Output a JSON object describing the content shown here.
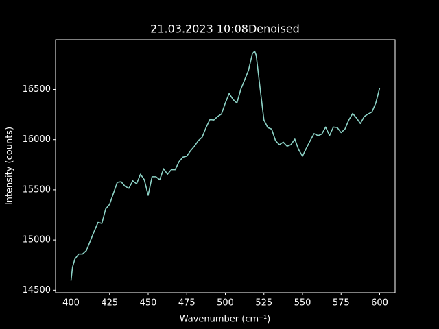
{
  "chart_data": {
    "type": "line",
    "title": "21.03.2023 10:08Denoised",
    "xlabel": "Wavenumber (cm⁻¹)",
    "ylabel": "Intensity (counts)",
    "color": "#8dd3c7",
    "xlim": [
      390,
      610
    ],
    "ylim": [
      14475,
      16995
    ],
    "xticks": [
      400,
      425,
      450,
      475,
      500,
      525,
      550,
      575,
      600
    ],
    "yticks": [
      14500,
      15000,
      15500,
      16000,
      16500
    ],
    "x": [
      400,
      401,
      402.5,
      405,
      407.5,
      410,
      412.5,
      415,
      417.5,
      420,
      422.5,
      425,
      427.5,
      430,
      432.5,
      435,
      437.5,
      440,
      442.5,
      445,
      447.5,
      450,
      452.5,
      455,
      457.5,
      460,
      462.5,
      465,
      467.5,
      470,
      472.5,
      475,
      477.5,
      480,
      482.5,
      485,
      487.5,
      490,
      492.5,
      495,
      497.5,
      500,
      502.5,
      505,
      507.5,
      510,
      512.5,
      515,
      517.5,
      519,
      520,
      522.5,
      525,
      527.5,
      530,
      532.5,
      535,
      537.5,
      540,
      542.5,
      545,
      547.5,
      550,
      552.5,
      555,
      557.5,
      560,
      562.5,
      565,
      567.5,
      570,
      572.5,
      575,
      577.5,
      580,
      582.5,
      585,
      587.5,
      590,
      592.5,
      595,
      597.5,
      600
    ],
    "values": [
      14595,
      14730,
      14810,
      14860,
      14860,
      14895,
      14990,
      15085,
      15175,
      15165,
      15310,
      15355,
      15465,
      15575,
      15580,
      15535,
      15515,
      15590,
      15560,
      15655,
      15600,
      15445,
      15630,
      15630,
      15600,
      15710,
      15655,
      15700,
      15700,
      15780,
      15825,
      15835,
      15890,
      15935,
      15990,
      16025,
      16120,
      16200,
      16195,
      16230,
      16255,
      16365,
      16460,
      16400,
      16365,
      16500,
      16595,
      16690,
      16855,
      16880,
      16840,
      16515,
      16195,
      16120,
      16105,
      15990,
      15950,
      15975,
      15935,
      15950,
      16005,
      15900,
      15835,
      15915,
      15990,
      16060,
      16040,
      16055,
      16125,
      16040,
      16125,
      16120,
      16070,
      16105,
      16195,
      16260,
      16215,
      16160,
      16230,
      16255,
      16275,
      16365,
      16515
    ]
  }
}
